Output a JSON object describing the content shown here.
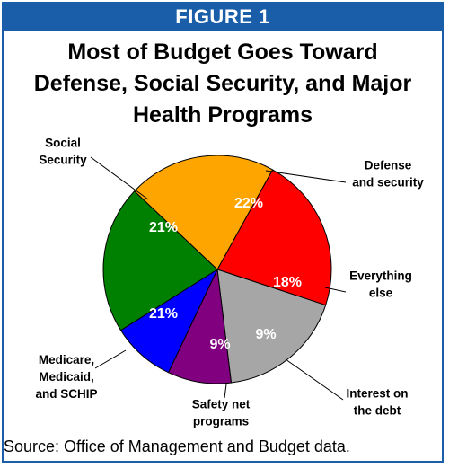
{
  "figure_label": "FIGURE 1",
  "chart_data": {
    "type": "pie",
    "title_lines": [
      "Most of Budget Goes Toward",
      "Defense, Social Security, and Major",
      "Health Programs"
    ],
    "slices": [
      {
        "label_lines": [
          "Defense",
          "and security"
        ],
        "value": 22,
        "value_label": "22%",
        "color": "#ff0000",
        "text_color": "#ffffff"
      },
      {
        "label_lines": [
          "Everything",
          "else"
        ],
        "value": 18,
        "value_label": "18%",
        "color": "#a6a6a6",
        "text_color": "#ffffff"
      },
      {
        "label_lines": [
          "Interest on",
          "the debt"
        ],
        "value": 9,
        "value_label": "9%",
        "color": "#800080",
        "text_color": "#ffffff"
      },
      {
        "label_lines": [
          "Safety net",
          "programs"
        ],
        "value": 9,
        "value_label": "9%",
        "color": "#0000ff",
        "text_color": "#ffffff"
      },
      {
        "label_lines": [
          "Medicare,",
          "Medicaid,",
          "and SCHIP"
        ],
        "value": 21,
        "value_label": "21%",
        "color": "#008000",
        "text_color": "#ffffff"
      },
      {
        "label_lines": [
          "Social",
          "Security"
        ],
        "value": 21,
        "value_label": "21%",
        "color": "#ffa500",
        "text_color": "#ffffff"
      }
    ]
  },
  "source": "Source: Office of Management and Budget data."
}
